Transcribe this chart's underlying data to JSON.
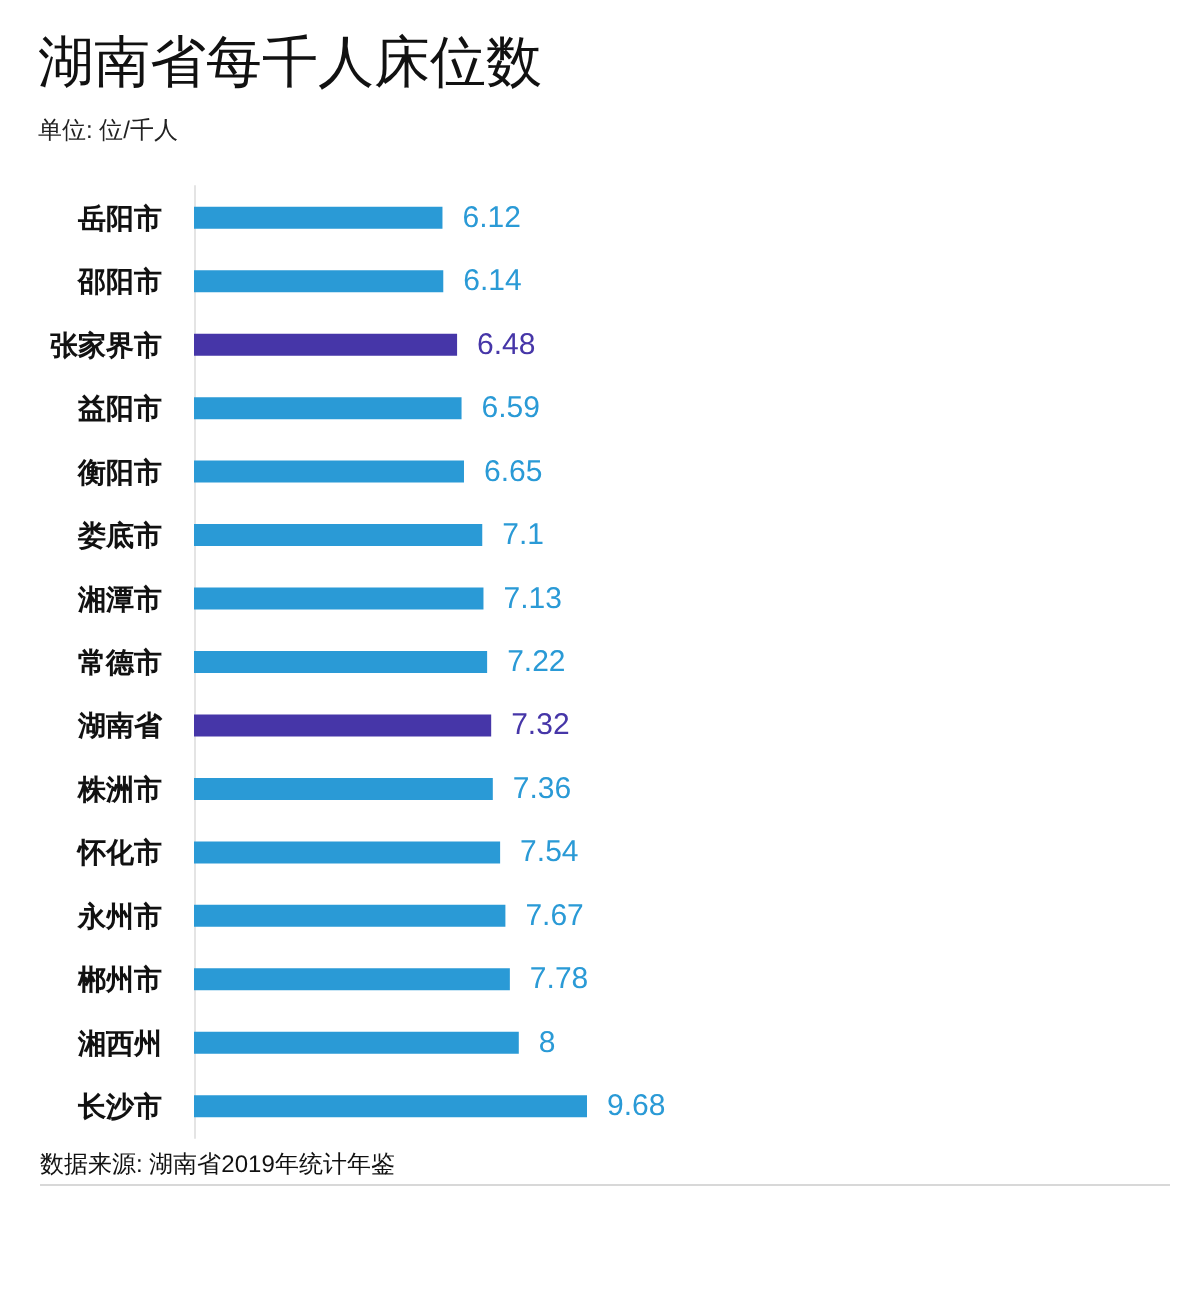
{
  "chart_data": {
    "type": "bar",
    "orientation": "horizontal",
    "title": "湖南省每千人床位数",
    "subtitle": "单位: 位/千人",
    "categories": [
      "岳阳市",
      "邵阳市",
      "张家界市",
      "益阳市",
      "衡阳市",
      "娄底市",
      "湘潭市",
      "常德市",
      "湖南省",
      "株洲市",
      "怀化市",
      "永州市",
      "郴州市",
      "湘西州",
      "长沙市"
    ],
    "values": [
      6.12,
      6.14,
      6.48,
      6.59,
      6.65,
      7.1,
      7.13,
      7.22,
      7.32,
      7.36,
      7.54,
      7.67,
      7.78,
      8,
      9.68
    ],
    "colors": [
      "#2a9ad6",
      "#2a9ad6",
      "#4636a8",
      "#2a9ad6",
      "#2a9ad6",
      "#2a9ad6",
      "#2a9ad6",
      "#2a9ad6",
      "#4636a8",
      "#2a9ad6",
      "#2a9ad6",
      "#2a9ad6",
      "#2a9ad6",
      "#2a9ad6",
      "#2a9ad6"
    ],
    "data_labels": true,
    "tick_labels": "y",
    "annotations": [
      "数据来源: 湖南省2019年统计年鉴"
    ]
  }
}
